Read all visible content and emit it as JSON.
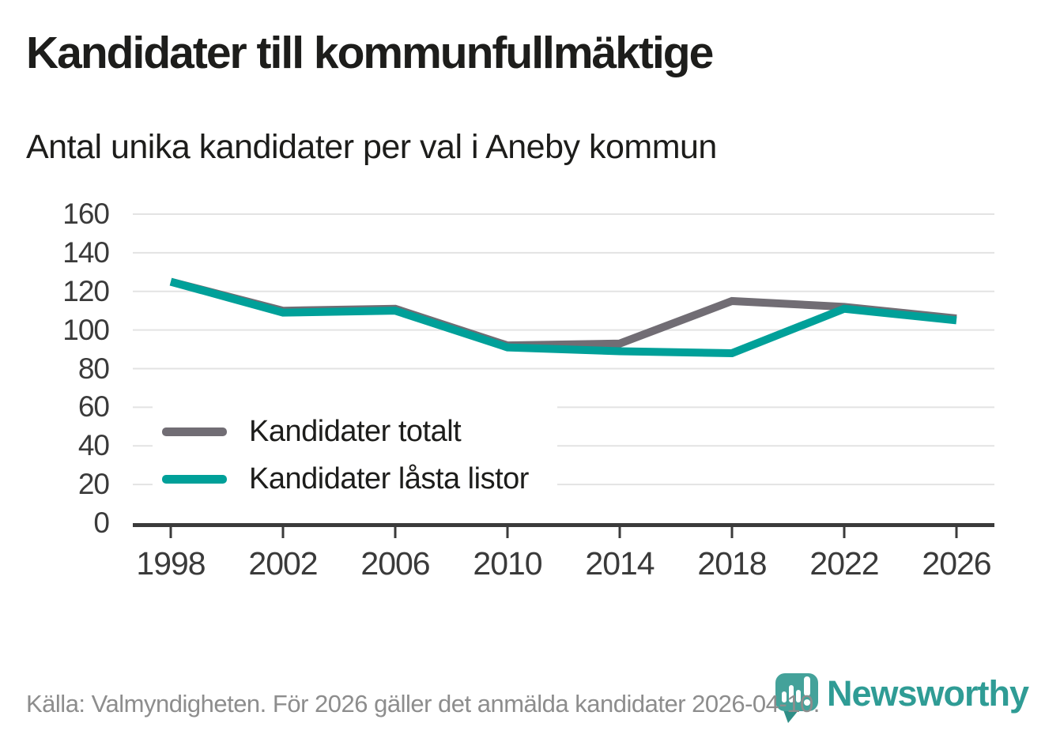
{
  "footer": {
    "source": "Källa: Valmyndigheten. För 2026 gäller det anmälda kandidater 2026-04-10.",
    "brand": "Newsworthy"
  },
  "colors": {
    "grid": "#e3e3e3",
    "axis": "#3b3b3b",
    "tick_label": "#3a3a3a",
    "heading_text": "#1d1d1b",
    "footer_text": "#8d8d8d",
    "brand_teal": "#2f9c95",
    "logo_pin_teal": "#44a29a",
    "logo_pin_dark": "#2e8e87",
    "series_total_gray": "#716d74",
    "series_locked_teal": "#00a099"
  },
  "chart_data": {
    "type": "line",
    "title": "Kandidater till kommunfullmäktige",
    "subtitle": "Antal unika kandidater per val i Aneby kommun",
    "x": [
      1998,
      2002,
      2006,
      2010,
      2014,
      2018,
      2022,
      2026
    ],
    "series": [
      {
        "name": "Kandidater totalt",
        "color": "#716d74",
        "values": [
          125,
          110,
          111,
          92,
          93,
          115,
          112,
          106
        ]
      },
      {
        "name": "Kandidater låsta listor",
        "color": "#00a099",
        "values": [
          125,
          109,
          110,
          91,
          89,
          88,
          111,
          105
        ]
      }
    ],
    "xlabel": "",
    "ylabel": "",
    "ylim": [
      0,
      160
    ],
    "ytick_step": 20,
    "grid": true,
    "legend_position": "inside-bottom-left"
  }
}
